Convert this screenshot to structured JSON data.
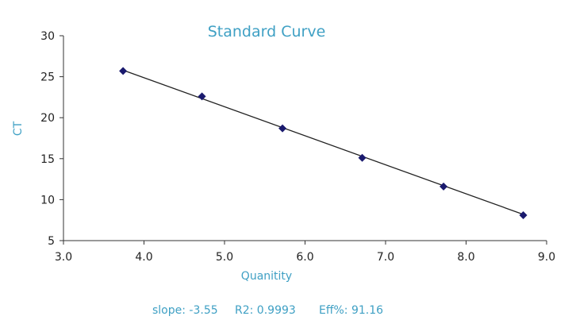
{
  "chart_data": {
    "type": "scatter",
    "title": "Standard Curve",
    "xlabel": "Quanitity",
    "ylabel": "CT",
    "xlim": [
      3.0,
      9.0
    ],
    "ylim": [
      5,
      30
    ],
    "x_ticks": [
      "3.0",
      "4.0",
      "5.0",
      "6.0",
      "7.0",
      "8.0",
      "9.0"
    ],
    "y_ticks": [
      "5",
      "10",
      "15",
      "20",
      "25",
      "30"
    ],
    "grid": false,
    "series": [
      {
        "x": [
          3.74,
          4.72,
          5.72,
          6.71,
          7.72,
          8.71
        ],
        "y": [
          25.7,
          22.6,
          18.7,
          15.1,
          11.6,
          8.1
        ]
      }
    ],
    "trendline": {
      "x": [
        3.74,
        8.71
      ],
      "y": [
        25.8,
        8.2
      ]
    },
    "annotations": {
      "slope": "slope: -3.55",
      "r2": "R2: 0.9993",
      "eff": "Eff%: 91.16"
    },
    "colors": {
      "title": "#3fa0c4",
      "marker": "#1a1a6e",
      "line": "#222222",
      "axis": "#333333"
    }
  }
}
